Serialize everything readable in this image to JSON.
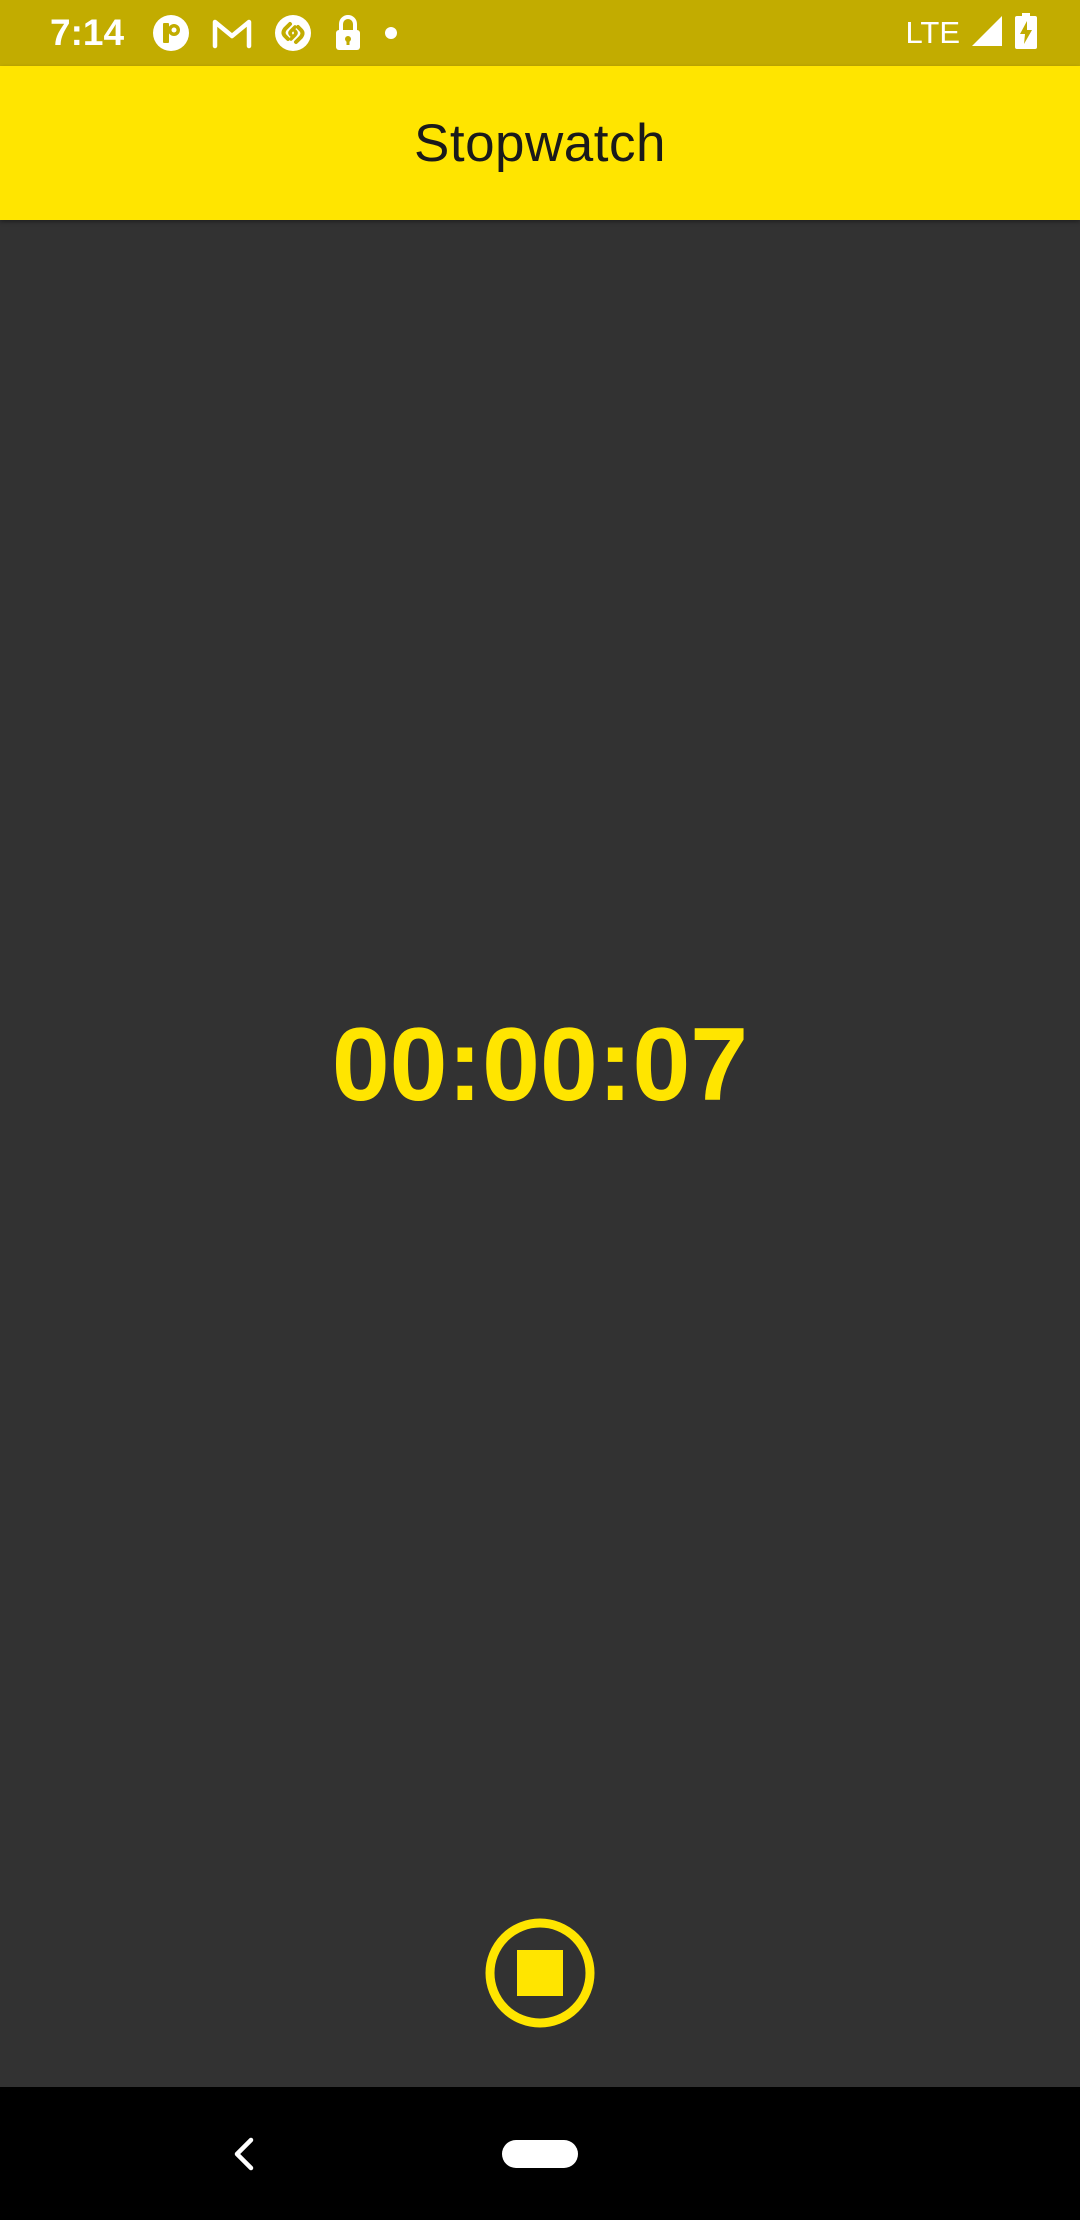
{
  "status_bar": {
    "time": "7:14",
    "network": "LTE",
    "icons_left": [
      "app-notification-icon",
      "gmail-icon",
      "shazam-icon",
      "lock-icon",
      "dot-icon"
    ],
    "icons_right": [
      "signal-icon",
      "battery-charging-icon"
    ]
  },
  "app_bar": {
    "title": "Stopwatch"
  },
  "timer": {
    "display": "00:00:07"
  },
  "controls": {
    "stop_icon": "stop-circle-icon"
  },
  "nav_bar": {
    "back_icon": "back-chevron-icon",
    "home_icon": "home-pill-icon"
  },
  "colors": {
    "accent": "#FFE500",
    "status_bar": "#C2AC00",
    "background": "#323232",
    "nav_bar": "#000000",
    "title_text": "#1a1a1a"
  }
}
